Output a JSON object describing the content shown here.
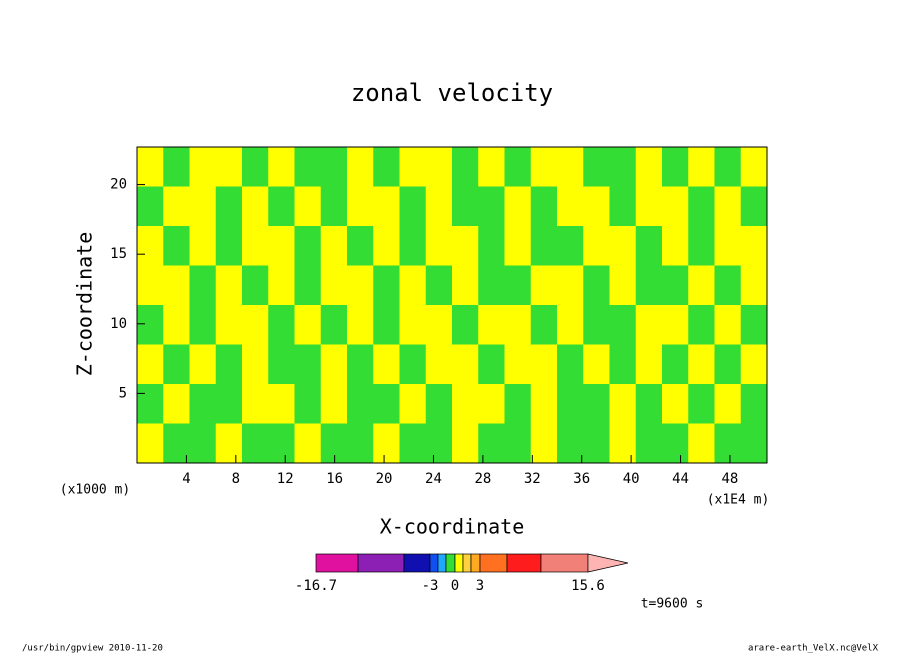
{
  "chart_data": {
    "type": "contour",
    "title": "zonal velocity",
    "xlabel": "X-coordinate",
    "ylabel": "Z-coordinate",
    "x_unit": "(x1E4 m)",
    "y_unit": "(x1000 m)",
    "annotation": "t=9600 s",
    "footer_left": "/usr/bin/gpview  2010-11-20",
    "footer_right": "arare-earth_VelX.nc@VelX",
    "xlim": [
      0,
      51
    ],
    "ylim": [
      0,
      22.7
    ],
    "xticks": [
      4,
      8,
      12,
      16,
      20,
      24,
      28,
      32,
      36,
      40,
      44,
      48
    ],
    "yticks": [
      5,
      10,
      15,
      20
    ],
    "levels": [
      -16.7,
      -12,
      -7.5,
      -3,
      -2,
      -1,
      0,
      1,
      2,
      3,
      7.5,
      12,
      15.6
    ],
    "level_colors": [
      "#e0119f",
      "#8c1fb4",
      "#1010b0",
      "#1050f0",
      "#20a8ff",
      "#33dd33",
      "#ffff00",
      "#ffd040",
      "#ffaa20",
      "#ff7020",
      "#ff1c1c",
      "#f08078"
    ],
    "over_color": "#ffb4b4",
    "colorbar_ticks": [
      -16.7,
      -3,
      0,
      3,
      15.6
    ],
    "z": [
      [
        0.5,
        -0.5,
        0.5,
        0.5,
        -0.5,
        0.5,
        -0.5,
        -0.5,
        0.5,
        -0.5,
        0.5,
        0.5,
        -0.5,
        0.5,
        -0.5,
        0.5,
        0.5,
        -0.5,
        -0.5,
        0.5,
        -0.5,
        0.5,
        -0.5,
        0.5
      ],
      [
        -0.5,
        0.5,
        0.5,
        -0.5,
        0.5,
        -0.5,
        0.5,
        -0.5,
        0.5,
        0.5,
        -0.5,
        0.5,
        -0.5,
        -0.5,
        0.5,
        -0.5,
        0.5,
        0.5,
        -0.5,
        0.5,
        0.5,
        -0.5,
        0.5,
        -0.5
      ],
      [
        0.5,
        -0.5,
        0.5,
        -0.5,
        0.5,
        0.5,
        -0.5,
        0.5,
        -0.5,
        0.5,
        -0.5,
        0.5,
        0.5,
        -0.5,
        0.5,
        -0.5,
        -0.5,
        0.5,
        0.5,
        -0.5,
        0.5,
        -0.5,
        0.5,
        0.5
      ],
      [
        0.5,
        0.5,
        -0.5,
        0.5,
        -0.5,
        0.5,
        -0.5,
        0.5,
        0.5,
        -0.5,
        0.5,
        -0.5,
        0.5,
        -0.5,
        -0.5,
        0.5,
        0.5,
        -0.5,
        0.5,
        -0.5,
        -0.5,
        0.5,
        -0.5,
        0.5
      ],
      [
        -0.5,
        0.5,
        -0.5,
        0.5,
        0.5,
        -0.5,
        0.5,
        -0.5,
        0.5,
        -0.5,
        0.5,
        0.5,
        -0.5,
        0.5,
        0.5,
        -0.5,
        0.5,
        -0.5,
        -0.5,
        0.5,
        0.5,
        -0.5,
        0.5,
        -0.5
      ],
      [
        0.5,
        -0.5,
        0.5,
        -0.5,
        0.5,
        -0.5,
        -0.5,
        0.5,
        -0.5,
        0.5,
        -0.5,
        0.5,
        0.5,
        -0.5,
        0.5,
        0.5,
        -0.5,
        0.5,
        -0.5,
        0.5,
        -0.5,
        0.5,
        -0.5,
        0.5
      ],
      [
        -0.5,
        0.5,
        -0.5,
        -0.5,
        0.5,
        0.5,
        -0.5,
        0.5,
        -0.5,
        -0.5,
        0.5,
        -0.5,
        0.5,
        0.5,
        -0.5,
        0.5,
        -0.5,
        -0.5,
        0.5,
        -0.5,
        0.5,
        -0.5,
        0.5,
        -0.5
      ],
      [
        0.5,
        -0.5,
        -0.5,
        0.5,
        -0.5,
        -0.5,
        0.5,
        -0.5,
        -0.5,
        0.5,
        -0.5,
        -0.5,
        0.5,
        -0.5,
        -0.5,
        0.5,
        -0.5,
        -0.5,
        0.5,
        -0.5,
        -0.5,
        0.5,
        -0.5,
        -0.5
      ]
    ]
  }
}
